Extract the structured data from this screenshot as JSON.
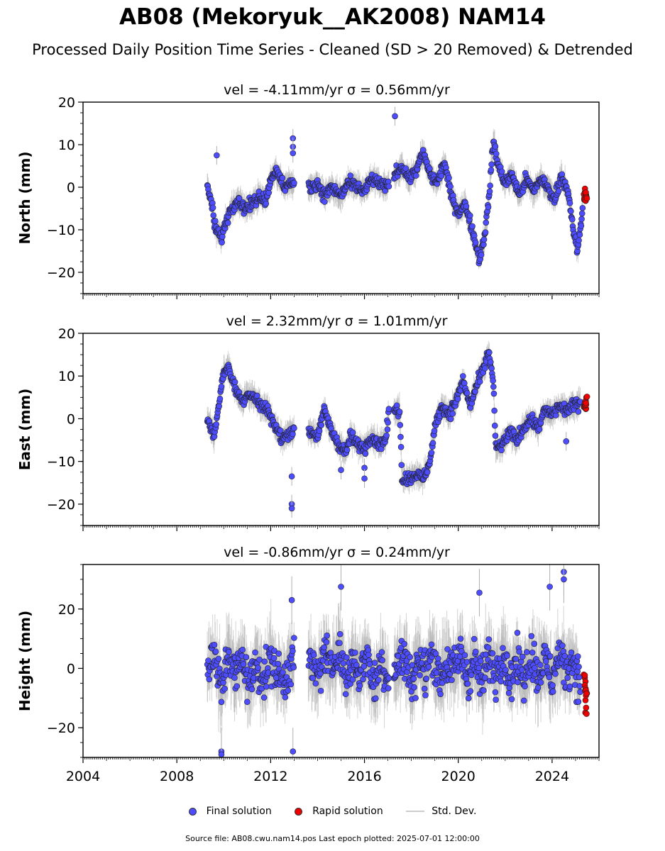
{
  "title": "AB08 (Mekoryuk__AK2008) NAM14",
  "subtitle": "Processed Daily Position Time Series - Cleaned (SD > 20 Removed) & Detrended",
  "footer": "Source file: AB08.cwu.nam14.pos  Last epoch plotted: 2025-07-01 12:00:00",
  "legend": {
    "final": "Final solution",
    "rapid": "Rapid solution",
    "std": "Std. Dev."
  },
  "colors": {
    "final": "#4d4dff",
    "rapid": "#ee0000",
    "std": "#b0b0b0",
    "edge": "#222222"
  },
  "chart_data": [
    {
      "type": "scatter",
      "title": "vel = -4.11mm/yr   σ = 0.56mm/yr",
      "ylabel": "North (mm)",
      "xlim": [
        2004,
        2026
      ],
      "ylim": [
        -25,
        20
      ],
      "yticks": [
        -20,
        -10,
        0,
        10,
        20
      ],
      "final_series": [
        [
          2009.3,
          0
        ],
        [
          2009.5,
          -4
        ],
        [
          2009.6,
          -9
        ],
        [
          2009.8,
          -11
        ],
        [
          2009.9,
          -12
        ],
        [
          2010.1,
          -8
        ],
        [
          2010.3,
          -5
        ],
        [
          2010.6,
          -3
        ],
        [
          2010.9,
          -5
        ],
        [
          2011.2,
          -4
        ],
        [
          2011.5,
          -2
        ],
        [
          2011.8,
          -3
        ],
        [
          2012.0,
          2
        ],
        [
          2012.2,
          4
        ],
        [
          2012.4,
          2
        ],
        [
          2012.6,
          0
        ],
        [
          2012.8,
          1
        ],
        [
          2013.7,
          0
        ],
        [
          2014.0,
          1
        ],
        [
          2014.3,
          -2
        ],
        [
          2014.6,
          0
        ],
        [
          2015.0,
          -2
        ],
        [
          2015.3,
          1
        ],
        [
          2015.7,
          0
        ],
        [
          2016.0,
          -1
        ],
        [
          2016.3,
          2
        ],
        [
          2016.6,
          1
        ],
        [
          2016.9,
          0
        ],
        [
          2017.3,
          3
        ],
        [
          2017.6,
          5
        ],
        [
          2017.9,
          2
        ],
        [
          2018.2,
          4
        ],
        [
          2018.5,
          8
        ],
        [
          2018.8,
          3
        ],
        [
          2019.1,
          1
        ],
        [
          2019.4,
          6
        ],
        [
          2019.7,
          -2
        ],
        [
          2020.0,
          -6
        ],
        [
          2020.3,
          -4
        ],
        [
          2020.6,
          -10
        ],
        [
          2020.9,
          -17
        ],
        [
          2021.1,
          -12
        ],
        [
          2021.3,
          -3
        ],
        [
          2021.5,
          11
        ],
        [
          2021.7,
          5
        ],
        [
          2022.0,
          1
        ],
        [
          2022.3,
          3
        ],
        [
          2022.6,
          -2
        ],
        [
          2022.9,
          2
        ],
        [
          2023.2,
          -1
        ],
        [
          2023.5,
          2
        ],
        [
          2023.8,
          0
        ],
        [
          2024.1,
          -3
        ],
        [
          2024.4,
          3
        ],
        [
          2024.7,
          -2
        ],
        [
          2024.9,
          -10
        ],
        [
          2025.1,
          -15
        ],
        [
          2025.3,
          -5
        ]
      ],
      "rapid_series": [
        [
          2025.38,
          -1
        ],
        [
          2025.4,
          -3
        ],
        [
          2025.42,
          -2
        ],
        [
          2025.44,
          -1.5
        ],
        [
          2025.46,
          -2.5
        ]
      ],
      "outliers": [
        [
          2009.7,
          7.5
        ],
        [
          2012.95,
          11.5
        ],
        [
          2012.95,
          9.5
        ],
        [
          2012.95,
          8
        ],
        [
          2017.3,
          16.7
        ]
      ]
    },
    {
      "type": "scatter",
      "title": "vel = 2.32mm/yr   σ = 1.01mm/yr",
      "ylabel": "East (mm)",
      "xlim": [
        2004,
        2026
      ],
      "ylim": [
        -25,
        20
      ],
      "yticks": [
        -20,
        -10,
        0,
        10,
        20
      ],
      "final_series": [
        [
          2009.3,
          0
        ],
        [
          2009.6,
          -4
        ],
        [
          2009.8,
          4
        ],
        [
          2010.0,
          11
        ],
        [
          2010.2,
          12
        ],
        [
          2010.5,
          7
        ],
        [
          2010.8,
          4
        ],
        [
          2011.0,
          6
        ],
        [
          2011.3,
          5
        ],
        [
          2011.6,
          3
        ],
        [
          2011.9,
          2
        ],
        [
          2012.2,
          -2
        ],
        [
          2012.5,
          -5
        ],
        [
          2012.8,
          -3
        ],
        [
          2013.7,
          -3
        ],
        [
          2014.0,
          -4
        ],
        [
          2014.3,
          2
        ],
        [
          2014.6,
          -3
        ],
        [
          2014.9,
          -6
        ],
        [
          2015.2,
          -8
        ],
        [
          2015.4,
          -4
        ],
        [
          2015.7,
          -6
        ],
        [
          2016.0,
          -7
        ],
        [
          2016.3,
          -4
        ],
        [
          2016.6,
          -6
        ],
        [
          2016.9,
          -5
        ],
        [
          2017.1,
          4
        ],
        [
          2017.3,
          2
        ],
        [
          2017.5,
          2
        ],
        [
          2017.6,
          -14
        ],
        [
          2017.9,
          -14
        ],
        [
          2018.2,
          -13
        ],
        [
          2018.5,
          -14
        ],
        [
          2018.8,
          -10
        ],
        [
          2019.0,
          -2
        ],
        [
          2019.3,
          3
        ],
        [
          2019.6,
          1
        ],
        [
          2019.9,
          4
        ],
        [
          2020.2,
          9
        ],
        [
          2020.5,
          3
        ],
        [
          2020.8,
          8
        ],
        [
          2021.1,
          12
        ],
        [
          2021.3,
          16
        ],
        [
          2021.5,
          8
        ],
        [
          2021.6,
          -7
        ],
        [
          2021.9,
          -6
        ],
        [
          2022.2,
          -3
        ],
        [
          2022.5,
          -5
        ],
        [
          2022.8,
          -2
        ],
        [
          2023.1,
          0
        ],
        [
          2023.4,
          -2
        ],
        [
          2023.7,
          2
        ],
        [
          2024.0,
          1
        ],
        [
          2024.3,
          3
        ],
        [
          2024.6,
          2
        ],
        [
          2024.9,
          3
        ],
        [
          2025.2,
          4
        ]
      ],
      "rapid_series": [
        [
          2025.38,
          3
        ],
        [
          2025.4,
          4
        ],
        [
          2025.42,
          2.5
        ],
        [
          2025.44,
          3.5
        ],
        [
          2025.46,
          4.5
        ]
      ],
      "outliers": [
        [
          2012.9,
          -13.5
        ],
        [
          2012.9,
          -20
        ],
        [
          2012.9,
          -21
        ],
        [
          2015.0,
          -12
        ],
        [
          2016.0,
          -11.5
        ],
        [
          2016.0,
          -14
        ],
        [
          2024.6,
          -5.3
        ]
      ]
    },
    {
      "type": "scatter",
      "title": "vel = -0.86mm/yr   σ = 0.24mm/yr",
      "ylabel": "Height (mm)",
      "xlim": [
        2004,
        2026
      ],
      "ylim": [
        -30,
        35
      ],
      "yticks": [
        -20,
        0,
        20
      ],
      "xticks": [
        2004,
        2008,
        2012,
        2016,
        2020,
        2024
      ],
      "final_series": [
        [
          2009.3,
          0
        ],
        [
          2009.6,
          5
        ],
        [
          2009.9,
          -8
        ],
        [
          2010.2,
          6
        ],
        [
          2010.5,
          -3
        ],
        [
          2010.8,
          4
        ],
        [
          2011.1,
          -6
        ],
        [
          2011.4,
          2
        ],
        [
          2011.7,
          -4
        ],
        [
          2012.0,
          3
        ],
        [
          2012.3,
          -2
        ],
        [
          2012.6,
          -5
        ],
        [
          2012.9,
          4
        ],
        [
          2013.7,
          2
        ],
        [
          2014.0,
          -3
        ],
        [
          2014.3,
          6
        ],
        [
          2014.6,
          -1
        ],
        [
          2014.9,
          8
        ],
        [
          2015.2,
          -4
        ],
        [
          2015.5,
          3
        ],
        [
          2015.8,
          -2
        ],
        [
          2016.1,
          5
        ],
        [
          2016.4,
          -6
        ],
        [
          2016.7,
          2
        ],
        [
          2017.0,
          -3
        ],
        [
          2017.4,
          1
        ],
        [
          2017.7,
          4
        ],
        [
          2018.0,
          -5
        ],
        [
          2018.3,
          3
        ],
        [
          2018.6,
          -2
        ],
        [
          2018.9,
          6
        ],
        [
          2019.2,
          -4
        ],
        [
          2019.5,
          2
        ],
        [
          2019.8,
          -1
        ],
        [
          2020.1,
          5
        ],
        [
          2020.4,
          -3
        ],
        [
          2020.7,
          3
        ],
        [
          2021.0,
          -5
        ],
        [
          2021.3,
          4
        ],
        [
          2021.6,
          -2
        ],
        [
          2021.9,
          6
        ],
        [
          2022.2,
          -4
        ],
        [
          2022.5,
          2
        ],
        [
          2022.8,
          -3
        ],
        [
          2023.1,
          5
        ],
        [
          2023.4,
          -2
        ],
        [
          2023.7,
          3
        ],
        [
          2024.0,
          -4
        ],
        [
          2024.3,
          5
        ],
        [
          2024.6,
          -1
        ],
        [
          2024.9,
          3
        ],
        [
          2025.2,
          -6
        ]
      ],
      "rapid_series": [
        [
          2025.38,
          -2
        ],
        [
          2025.4,
          -6
        ],
        [
          2025.42,
          -10
        ],
        [
          2025.44,
          -14
        ],
        [
          2025.46,
          -8
        ]
      ],
      "outliers": [
        [
          2009.9,
          -28
        ],
        [
          2009.9,
          -29
        ],
        [
          2012.95,
          -28
        ],
        [
          2012.9,
          23
        ],
        [
          2015.0,
          27.5
        ],
        [
          2020.9,
          25.5
        ],
        [
          2024.5,
          32.5
        ],
        [
          2024.5,
          30
        ],
        [
          2023.9,
          27.5
        ]
      ]
    }
  ]
}
